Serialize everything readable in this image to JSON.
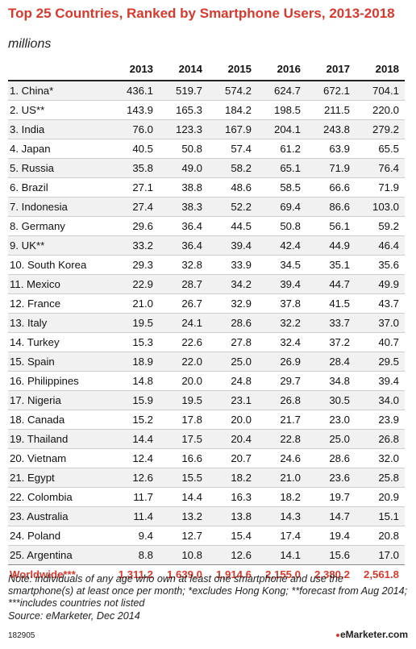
{
  "title": "Top 25 Countries, Ranked by Smartphone Users, 2013-2018",
  "subtitle": "millions",
  "note": "Note: individuals of any age who own at least one smartphone and use the smartphone(s) at least once per month; *excludes Hong Kong; **forecast from Aug 2014; ***includes countries not listed",
  "source": "Source: eMarketer, Dec 2014",
  "footer_id": "182905",
  "brand": "eMarketer.com",
  "colors": {
    "accent": "#d63a2e",
    "row_alt": "#f1f1f1"
  },
  "chart_data": {
    "type": "table",
    "title": "Top 25 Countries, Ranked by Smartphone Users, 2013-2018",
    "unit": "millions",
    "columns": [
      "2013",
      "2014",
      "2015",
      "2016",
      "2017",
      "2018"
    ],
    "rows": [
      {
        "label": "1. China*",
        "values": [
          "436.1",
          "519.7",
          "574.2",
          "624.7",
          "672.1",
          "704.1"
        ]
      },
      {
        "label": "2. US**",
        "values": [
          "143.9",
          "165.3",
          "184.2",
          "198.5",
          "211.5",
          "220.0"
        ]
      },
      {
        "label": "3. India",
        "values": [
          "76.0",
          "123.3",
          "167.9",
          "204.1",
          "243.8",
          "279.2"
        ]
      },
      {
        "label": "4. Japan",
        "values": [
          "40.5",
          "50.8",
          "57.4",
          "61.2",
          "63.9",
          "65.5"
        ]
      },
      {
        "label": "5. Russia",
        "values": [
          "35.8",
          "49.0",
          "58.2",
          "65.1",
          "71.9",
          "76.4"
        ]
      },
      {
        "label": "6. Brazil",
        "values": [
          "27.1",
          "38.8",
          "48.6",
          "58.5",
          "66.6",
          "71.9"
        ]
      },
      {
        "label": "7. Indonesia",
        "values": [
          "27.4",
          "38.3",
          "52.2",
          "69.4",
          "86.6",
          "103.0"
        ]
      },
      {
        "label": "8. Germany",
        "values": [
          "29.6",
          "36.4",
          "44.5",
          "50.8",
          "56.1",
          "59.2"
        ]
      },
      {
        "label": "9. UK**",
        "values": [
          "33.2",
          "36.4",
          "39.4",
          "42.4",
          "44.9",
          "46.4"
        ]
      },
      {
        "label": "10. South Korea",
        "values": [
          "29.3",
          "32.8",
          "33.9",
          "34.5",
          "35.1",
          "35.6"
        ]
      },
      {
        "label": "11. Mexico",
        "values": [
          "22.9",
          "28.7",
          "34.2",
          "39.4",
          "44.7",
          "49.9"
        ]
      },
      {
        "label": "12. France",
        "values": [
          "21.0",
          "26.7",
          "32.9",
          "37.8",
          "41.5",
          "43.7"
        ]
      },
      {
        "label": "13. Italy",
        "values": [
          "19.5",
          "24.1",
          "28.6",
          "32.2",
          "33.7",
          "37.0"
        ]
      },
      {
        "label": "14. Turkey",
        "values": [
          "15.3",
          "22.6",
          "27.8",
          "32.4",
          "37.2",
          "40.7"
        ]
      },
      {
        "label": "15. Spain",
        "values": [
          "18.9",
          "22.0",
          "25.0",
          "26.9",
          "28.4",
          "29.5"
        ]
      },
      {
        "label": "16. Philippines",
        "values": [
          "14.8",
          "20.0",
          "24.8",
          "29.7",
          "34.8",
          "39.4"
        ]
      },
      {
        "label": "17. Nigeria",
        "values": [
          "15.9",
          "19.5",
          "23.1",
          "26.8",
          "30.5",
          "34.0"
        ]
      },
      {
        "label": "18. Canada",
        "values": [
          "15.2",
          "17.8",
          "20.0",
          "21.7",
          "23.0",
          "23.9"
        ]
      },
      {
        "label": "19. Thailand",
        "values": [
          "14.4",
          "17.5",
          "20.4",
          "22.8",
          "25.0",
          "26.8"
        ]
      },
      {
        "label": "20. Vietnam",
        "values": [
          "12.4",
          "16.6",
          "20.7",
          "24.6",
          "28.6",
          "32.0"
        ]
      },
      {
        "label": "21. Egypt",
        "values": [
          "12.6",
          "15.5",
          "18.2",
          "21.0",
          "23.6",
          "25.8"
        ]
      },
      {
        "label": "22. Colombia",
        "values": [
          "11.7",
          "14.4",
          "16.3",
          "18.2",
          "19.7",
          "20.9"
        ]
      },
      {
        "label": "23. Australia",
        "values": [
          "11.4",
          "13.2",
          "13.8",
          "14.3",
          "14.7",
          "15.1"
        ]
      },
      {
        "label": "24. Poland",
        "values": [
          "9.4",
          "12.7",
          "15.4",
          "17.4",
          "19.4",
          "20.8"
        ]
      },
      {
        "label": "25. Argentina",
        "values": [
          "8.8",
          "10.8",
          "12.6",
          "14.1",
          "15.6",
          "17.0"
        ]
      }
    ],
    "total": {
      "label": "Worldwide***",
      "values": [
        "1,311.2",
        "1,639.0",
        "1,914.6",
        "2,155.0",
        "2,380.2",
        "2,561.8"
      ]
    }
  }
}
